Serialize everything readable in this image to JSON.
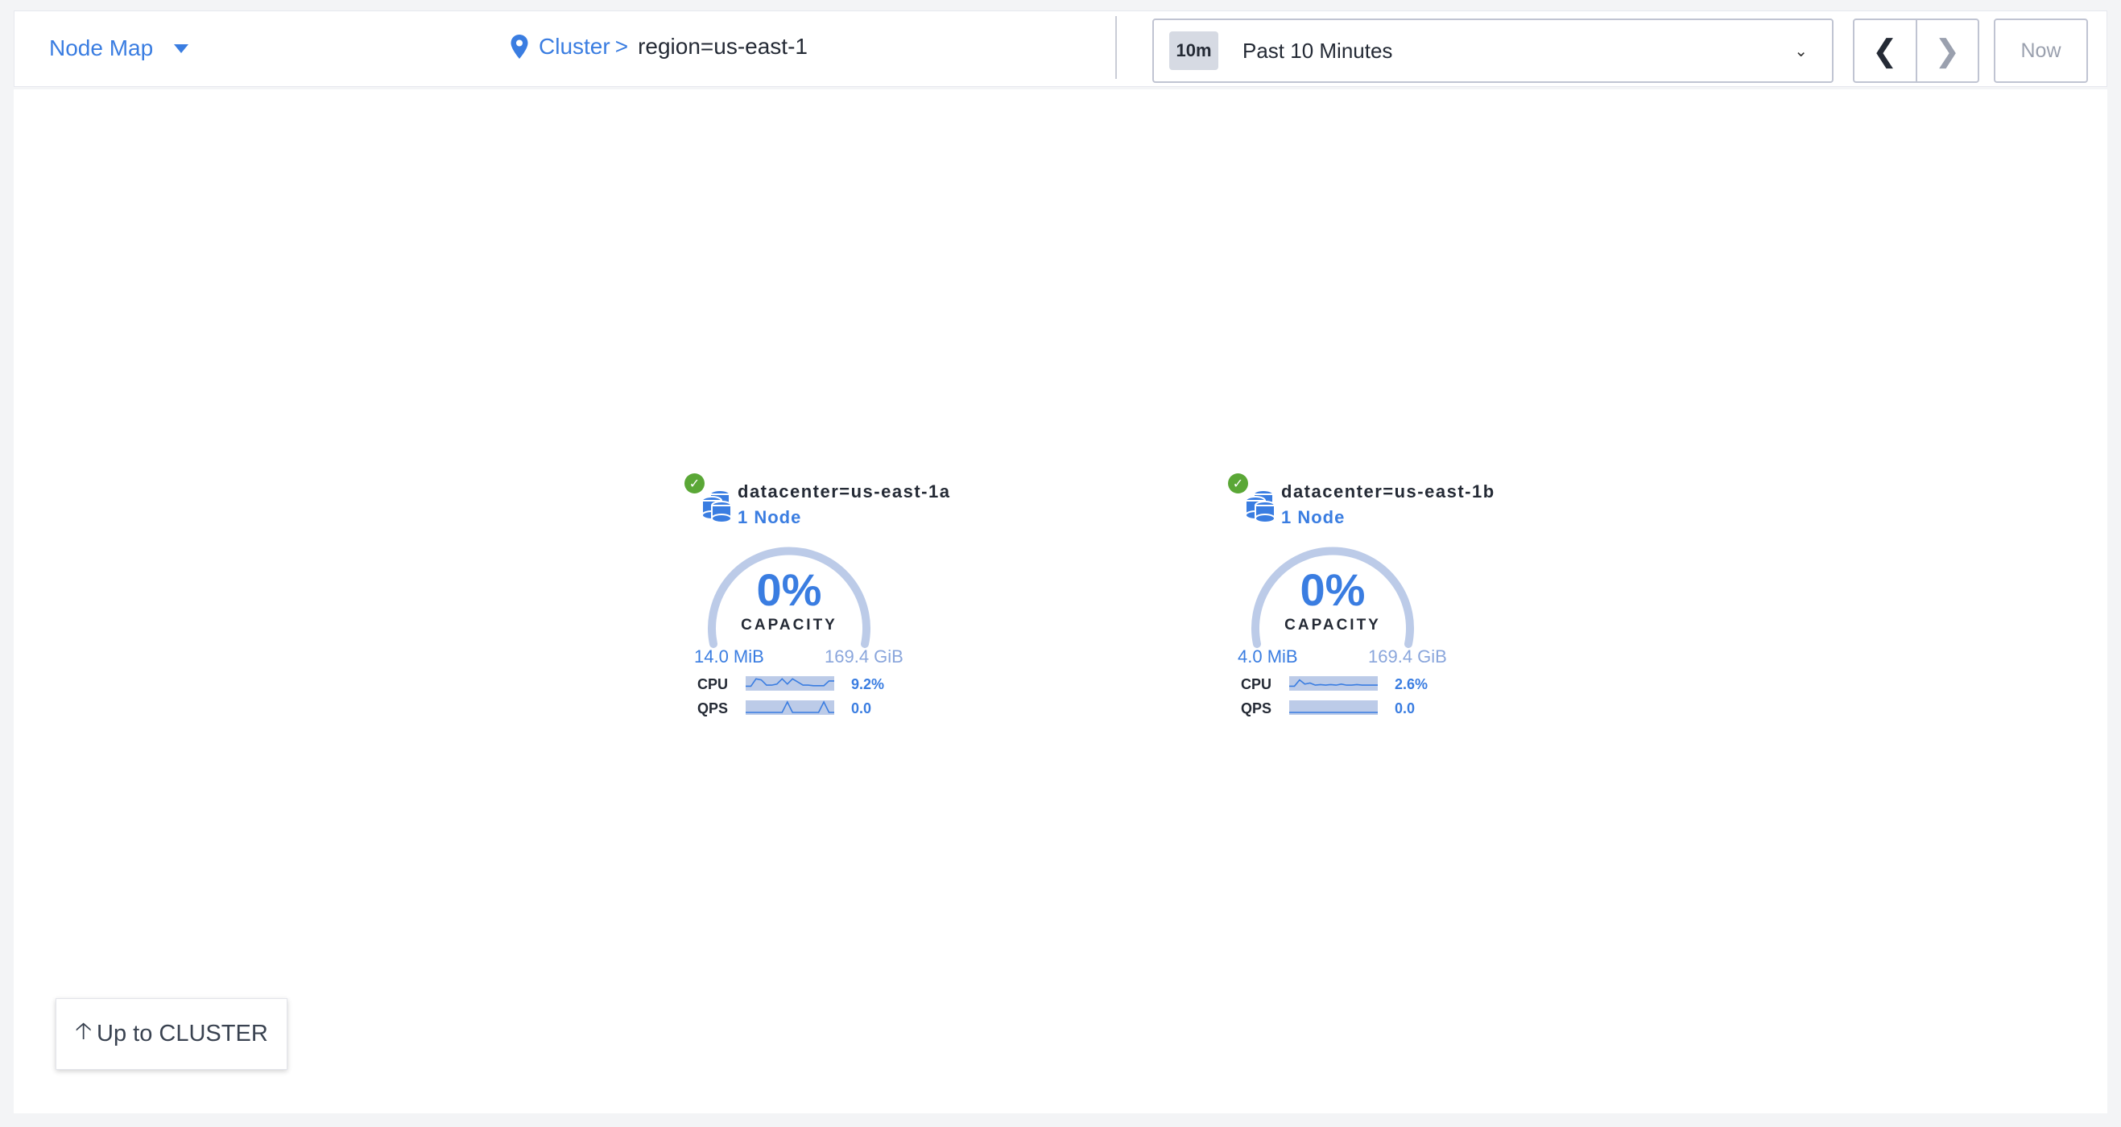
{
  "header": {
    "view_selector": "Node Map",
    "breadcrumb": {
      "root": "Cluster",
      "separator": ">",
      "current": "region=us-east-1"
    },
    "time_range": {
      "badge": "10m",
      "label": "Past 10 Minutes"
    },
    "now_label": "Now"
  },
  "datacenters": [
    {
      "name": "datacenter=us-east-1a",
      "nodes": "1 Node",
      "status": "healthy",
      "capacity_percent": "0%",
      "capacity_label": "CAPACITY",
      "used": "14.0 MiB",
      "total": "169.4 GiB",
      "cpu_label": "CPU",
      "cpu_value": "9.2%",
      "qps_label": "QPS",
      "qps_value": "0.0",
      "cpu_spark": [
        0.2,
        0.2,
        0.9,
        0.8,
        0.3,
        0.3,
        0.4,
        0.9,
        0.4,
        0.9,
        0.6,
        0.3,
        0.3,
        0.25,
        0.25,
        0.25,
        0.7,
        0.7
      ],
      "qps_spark": [
        0,
        0,
        0,
        0,
        0,
        0,
        0,
        0,
        1,
        0,
        0,
        0,
        0,
        0,
        0,
        1,
        0,
        0
      ]
    },
    {
      "name": "datacenter=us-east-1b",
      "nodes": "1 Node",
      "status": "healthy",
      "capacity_percent": "0%",
      "capacity_label": "CAPACITY",
      "used": "4.0 MiB",
      "total": "169.4 GiB",
      "cpu_label": "CPU",
      "cpu_value": "2.6%",
      "qps_label": "QPS",
      "qps_value": "0.0",
      "cpu_spark": [
        0.2,
        0.2,
        0.8,
        0.4,
        0.5,
        0.3,
        0.35,
        0.3,
        0.35,
        0.3,
        0.4,
        0.3,
        0.3,
        0.35,
        0.3,
        0.3,
        0.3,
        0.3
      ],
      "qps_spark": [
        0,
        0,
        0,
        0,
        0,
        0,
        0,
        0,
        0,
        0,
        0,
        0,
        0,
        0,
        0,
        0,
        0,
        0
      ]
    }
  ],
  "colors": {
    "accent": "#3a7de1",
    "healthy": "#5aa736",
    "gauge_track": "#bccbe8"
  },
  "up_button": "Up to CLUSTER"
}
